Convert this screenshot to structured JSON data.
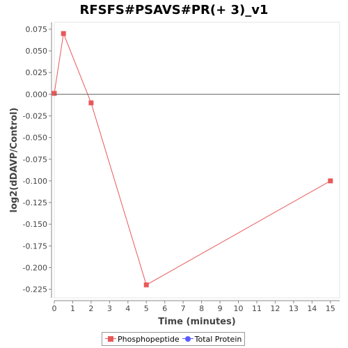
{
  "chart_data": {
    "type": "line",
    "title": "RFSFS#PSAVS#PR(+ 3)_v1",
    "xlabel": "Time (minutes)",
    "ylabel": "log2(dDAVP/Control)",
    "xlim": [
      0,
      15.5
    ],
    "ylim": [
      -0.235,
      0.083
    ],
    "x_ticks": [
      "0",
      "1",
      "2",
      "3",
      "4",
      "5",
      "6",
      "7",
      "8",
      "9",
      "10",
      "11",
      "12",
      "13",
      "14",
      "15"
    ],
    "y_ticks": [
      "0.075",
      "0.050",
      "0.025",
      "0.000",
      "-0.025",
      "-0.050",
      "-0.075",
      "-0.100",
      "-0.125",
      "-0.150",
      "-0.175",
      "-0.200",
      "-0.225"
    ],
    "zero_line": true,
    "grid": false,
    "legend_position": "bottom",
    "series": [
      {
        "name": "Phosphopeptide",
        "color": "#e8595a",
        "marker": "square",
        "x": [
          0,
          0.5,
          2,
          5,
          15
        ],
        "y": [
          0.001,
          0.07,
          -0.01,
          -0.22,
          -0.1
        ]
      },
      {
        "name": "Total Protein",
        "color": "#5b5bff",
        "marker": "circle",
        "x": [],
        "y": []
      }
    ]
  }
}
